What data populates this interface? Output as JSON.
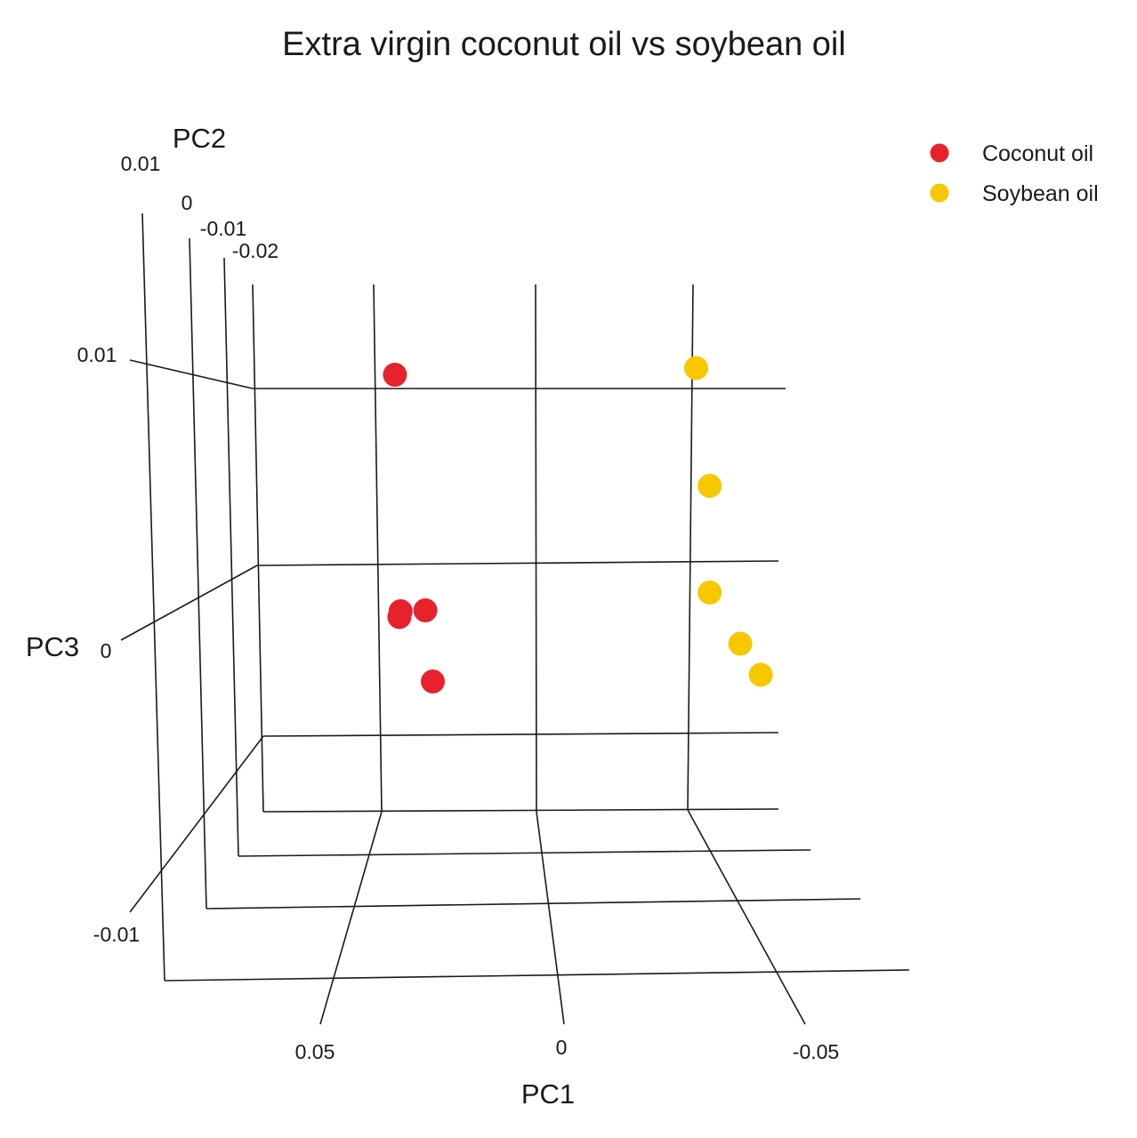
{
  "chart_data": {
    "type": "scatter",
    "title": "Extra virgin coconut oil vs soybean oil",
    "axes": {
      "x": {
        "label": "PC1",
        "ticks": [
          "0.05",
          "0",
          "-0.05"
        ]
      },
      "y": {
        "label": "PC2",
        "ticks": [
          "0.01",
          "0",
          "-0.01",
          "-0.02"
        ]
      },
      "z": {
        "label": "PC3",
        "ticks": [
          "0.01",
          "0",
          "-0.01"
        ]
      }
    },
    "legend": {
      "placement": "top-right"
    },
    "series": [
      {
        "name": "Coconut oil",
        "color": "#e8222c",
        "points": [
          {
            "pc1": 0.086,
            "pc2": -0.009,
            "pc3": 0.0125
          },
          {
            "pc1": 0.062,
            "pc2": -0.019,
            "pc3": 0.0005
          },
          {
            "pc1": 0.083,
            "pc2": -0.009,
            "pc3": -0.0008
          },
          {
            "pc1": 0.086,
            "pc2": -0.006,
            "pc3": -0.0015
          },
          {
            "pc1": 0.058,
            "pc2": -0.019,
            "pc3": -0.0035
          }
        ]
      },
      {
        "name": "Soybean oil",
        "color": "#f7c800",
        "points": [
          {
            "pc1": -0.081,
            "pc2": -0.018,
            "pc3": 0.014
          },
          {
            "pc1": -0.089,
            "pc2": -0.019,
            "pc3": 0.0075
          },
          {
            "pc1": -0.089,
            "pc2": -0.019,
            "pc3": 0.0015
          },
          {
            "pc1": -0.095,
            "pc2": -0.006,
            "pc3": -0.003
          },
          {
            "pc1": -0.098,
            "pc2": 0.004,
            "pc3": -0.006
          }
        ]
      }
    ]
  }
}
